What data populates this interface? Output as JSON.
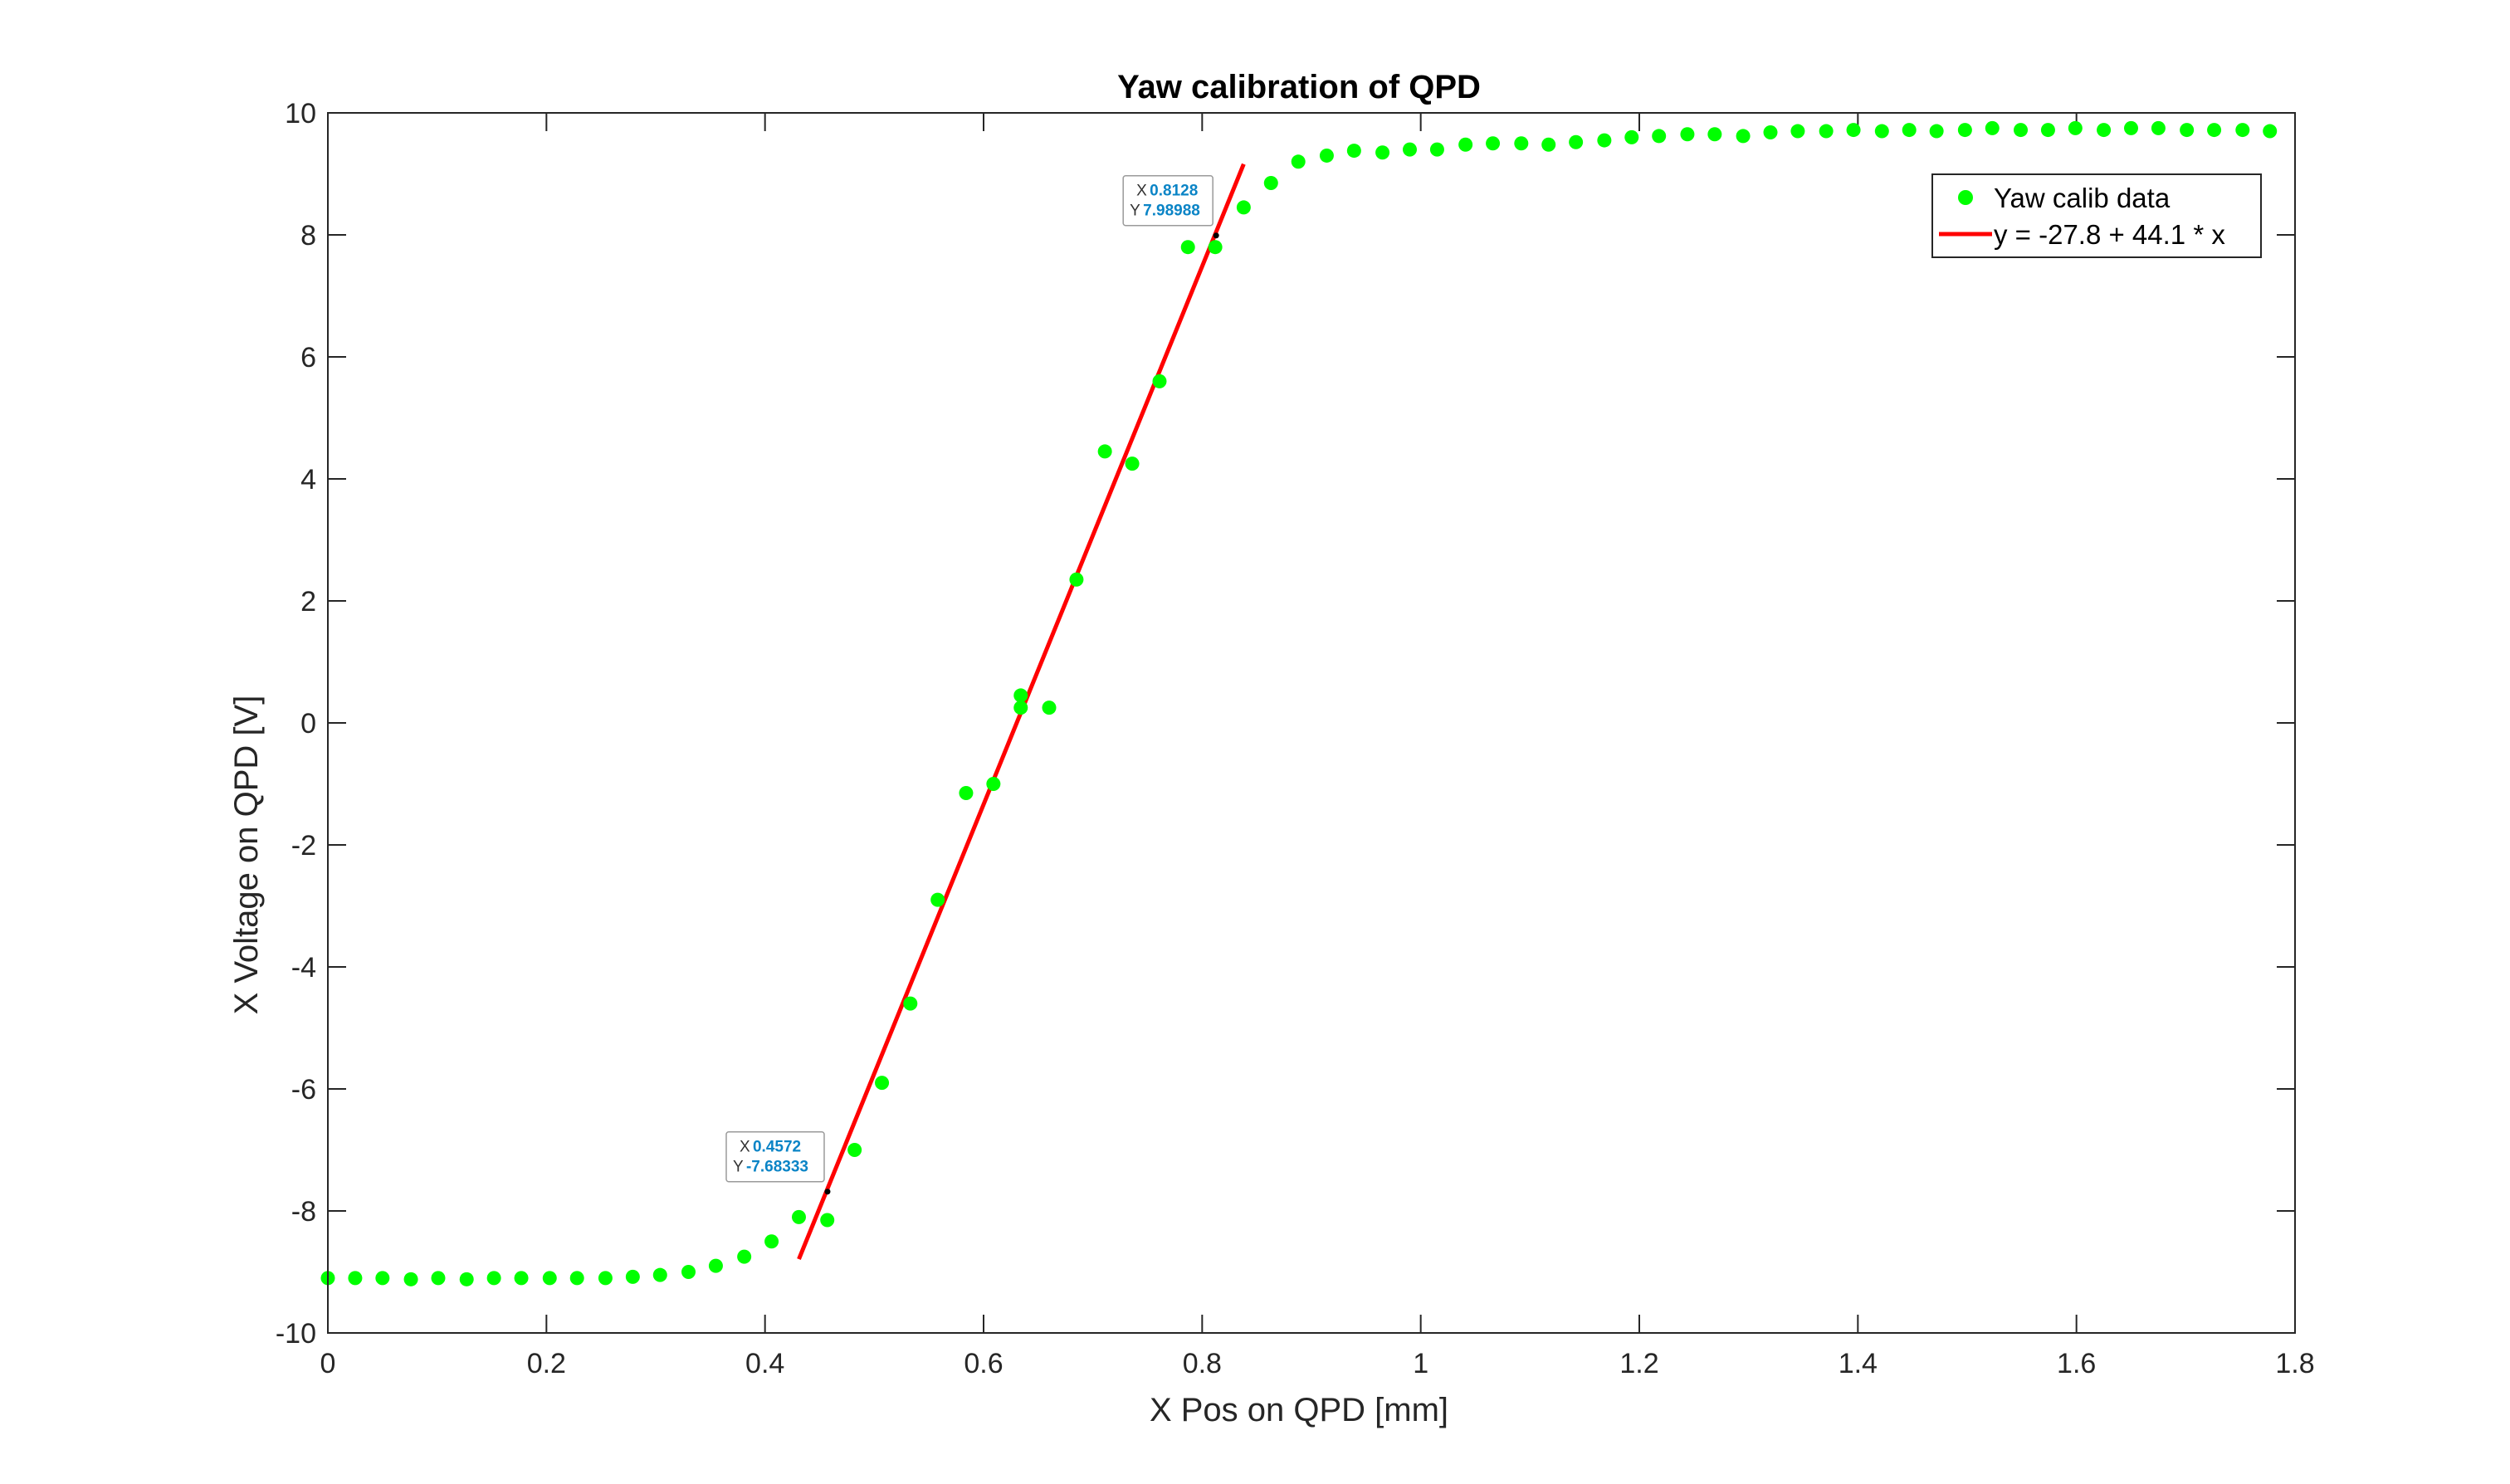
{
  "colors": {
    "data_marker": "#00ff00",
    "fit_line": "#ff0000",
    "datatip_value": "#0a84c6",
    "axes": "#262626",
    "background": "#ffffff"
  },
  "chart_data": {
    "type": "scatter",
    "title": "Yaw calibration of QPD",
    "xlabel": "X Pos on QPD [mm]",
    "ylabel": "X Voltage on QPD [V]",
    "xlim": [
      0,
      1.8
    ],
    "ylim": [
      -10,
      10
    ],
    "grid": false,
    "legend_position": "top-right",
    "x_ticks": [
      0,
      0.2,
      0.4,
      0.6,
      0.8,
      1.0,
      1.2,
      1.4,
      1.6,
      1.8
    ],
    "x_tick_labels": [
      "0",
      "0.2",
      "0.4",
      "0.6",
      "0.8",
      "1",
      "1.2",
      "1.4",
      "1.6",
      "1.8"
    ],
    "y_ticks": [
      -10,
      -8,
      -6,
      -4,
      -2,
      0,
      2,
      4,
      6,
      8,
      10
    ],
    "y_tick_labels": [
      "-10",
      "-8",
      "-6",
      "-4",
      "-2",
      "0",
      "2",
      "4",
      "6",
      "8",
      "10"
    ],
    "series": [
      {
        "name": "Yaw calib data",
        "style": "markers",
        "x": [
          0.0,
          0.025,
          0.05,
          0.076,
          0.101,
          0.127,
          0.152,
          0.177,
          0.203,
          0.228,
          0.254,
          0.279,
          0.304,
          0.33,
          0.355,
          0.381,
          0.406,
          0.431,
          0.457,
          0.482,
          0.507,
          0.533,
          0.558,
          0.584,
          0.609,
          0.634,
          0.634,
          0.66,
          0.685,
          0.711,
          0.736,
          0.761,
          0.787,
          0.812,
          0.838,
          0.863,
          0.888,
          0.914,
          0.939,
          0.965,
          0.99,
          1.015,
          1.041,
          1.066,
          1.092,
          1.117,
          1.142,
          1.168,
          1.193,
          1.218,
          1.244,
          1.269,
          1.295,
          1.32,
          1.345,
          1.371,
          1.396,
          1.422,
          1.447,
          1.472,
          1.498,
          1.523,
          1.549,
          1.574,
          1.599,
          1.625,
          1.65,
          1.675,
          1.701,
          1.726,
          1.752,
          1.777
        ],
        "y": [
          -9.1,
          -9.1,
          -9.1,
          -9.12,
          -9.1,
          -9.12,
          -9.1,
          -9.1,
          -9.1,
          -9.1,
          -9.1,
          -9.08,
          -9.05,
          -9.0,
          -8.9,
          -8.75,
          -8.5,
          -8.1,
          -8.15,
          -7.0,
          -5.9,
          -4.6,
          -2.9,
          -1.15,
          -1.0,
          0.25,
          0.45,
          0.25,
          2.35,
          4.45,
          4.25,
          5.6,
          7.8,
          7.8,
          8.45,
          8.85,
          9.2,
          9.3,
          9.38,
          9.35,
          9.4,
          9.4,
          9.48,
          9.5,
          9.5,
          9.48,
          9.52,
          9.55,
          9.6,
          9.62,
          9.65,
          9.65,
          9.62,
          9.68,
          9.7,
          9.7,
          9.72,
          9.7,
          9.72,
          9.7,
          9.72,
          9.75,
          9.72,
          9.72,
          9.75,
          9.72,
          9.75,
          9.75,
          9.72,
          9.72,
          9.72,
          9.7
        ]
      },
      {
        "name": "y = -27.8 + 44.1 * x",
        "style": "line",
        "x": [
          0.431,
          0.838
        ],
        "y": [
          -8.79,
          9.16
        ]
      }
    ],
    "datatips": [
      {
        "x_key": "X",
        "x_value": "0.8128",
        "y_key": "Y",
        "y_value": "7.98988",
        "x": 0.8128,
        "y": 7.98988
      },
      {
        "x_key": "X",
        "x_value": "0.4572",
        "y_key": "Y",
        "y_value": "-7.68333",
        "x": 0.4572,
        "y": -7.68333
      }
    ]
  }
}
